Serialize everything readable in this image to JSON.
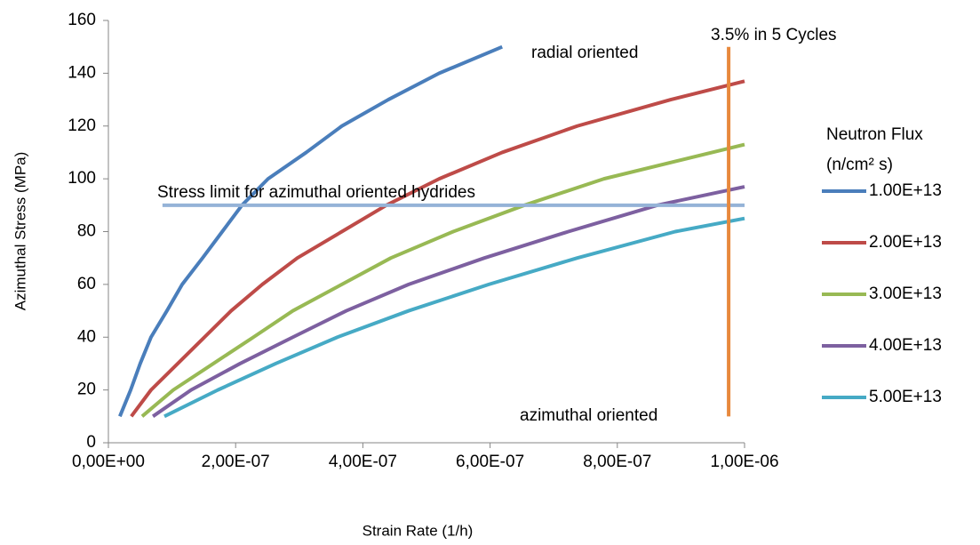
{
  "chart_data": {
    "type": "line",
    "x_label": "Strain Rate  (1/h)",
    "y_label": "Azimuthal Stress  (MPa)",
    "xlim": [
      0,
      1e-06
    ],
    "ylim": [
      0,
      160
    ],
    "xticks": [
      {
        "value": 0,
        "label": "0,00E+00"
      },
      {
        "value": 2e-07,
        "label": "2,00E-07"
      },
      {
        "value": 4e-07,
        "label": "4,00E-07"
      },
      {
        "value": 6e-07,
        "label": "6,00E-07"
      },
      {
        "value": 8e-07,
        "label": "8,00E-07"
      },
      {
        "value": 1e-06,
        "label": "1,00E-06"
      }
    ],
    "yticks": [
      0,
      20,
      40,
      60,
      80,
      100,
      120,
      140,
      160
    ],
    "grid": false,
    "legend_title": [
      "Neutron Flux",
      "(n/cm² s)"
    ],
    "legend_position": "right",
    "series": [
      {
        "name": "1.00E+13",
        "color": "#4a7ebb",
        "x": [
          1.8e-08,
          3.5e-08,
          5e-08,
          6.7e-08,
          9.2e-08,
          1.16e-07,
          1.48e-07,
          1.79e-07,
          2.1e-07,
          2.51e-07,
          3.11e-07,
          3.67e-07,
          4.4e-07,
          5.2e-07,
          6.19e-07
        ],
        "values": [
          10,
          20,
          30,
          40,
          50,
          60,
          70,
          80,
          90,
          100,
          110,
          120,
          130,
          140,
          150
        ]
      },
      {
        "name": "2.00E+13",
        "color": "#be4b48",
        "x": [
          3.6e-08,
          6.7e-08,
          1.09e-07,
          1.51e-07,
          1.93e-07,
          2.42e-07,
          2.97e-07,
          3.67e-07,
          4.37e-07,
          5.2e-07,
          6.19e-07,
          7.37e-07,
          8.84e-07,
          1e-06
        ],
        "values": [
          10,
          20,
          30,
          40,
          50,
          60,
          70,
          80,
          90,
          100,
          110,
          120,
          130,
          137
        ]
      },
      {
        "name": "3.00E+13",
        "color": "#98b954",
        "x": [
          5.3e-08,
          1.02e-07,
          1.65e-07,
          2.28e-07,
          2.9e-07,
          3.67e-07,
          4.44e-07,
          5.42e-07,
          6.54e-07,
          7.79e-07,
          1e-06
        ],
        "values": [
          10,
          20,
          30,
          40,
          50,
          60,
          70,
          80,
          90,
          100,
          113
        ]
      },
      {
        "name": "4.00E+13",
        "color": "#7d60a0",
        "x": [
          7e-08,
          1.3e-07,
          2.07e-07,
          2.9e-07,
          3.74e-07,
          4.72e-07,
          5.91e-07,
          7.23e-07,
          8.63e-07,
          1e-06
        ],
        "values": [
          10,
          20,
          30,
          40,
          50,
          60,
          70,
          80,
          90,
          97
        ]
      },
      {
        "name": "5.00E+13",
        "color": "#46aac5",
        "x": [
          8.8e-08,
          1.72e-07,
          2.63e-07,
          3.6e-07,
          4.72e-07,
          5.98e-07,
          7.37e-07,
          8.91e-07,
          1e-06
        ],
        "values": [
          10,
          20,
          30,
          40,
          50,
          60,
          70,
          80,
          85
        ]
      }
    ],
    "reference_lines": [
      {
        "label": "Stress limit for azimuthal oriented hydrides",
        "color": "#95b3d7",
        "x": [
          8.5e-08,
          1e-06
        ],
        "values": [
          90,
          90
        ]
      },
      {
        "label": "3.5% in 5 Cycles",
        "color": "#e8893c",
        "x": [
          9.75e-07,
          9.75e-07
        ],
        "values": [
          10,
          150
        ]
      }
    ],
    "annotations": [
      "radial oriented",
      "azimuthal oriented"
    ]
  }
}
